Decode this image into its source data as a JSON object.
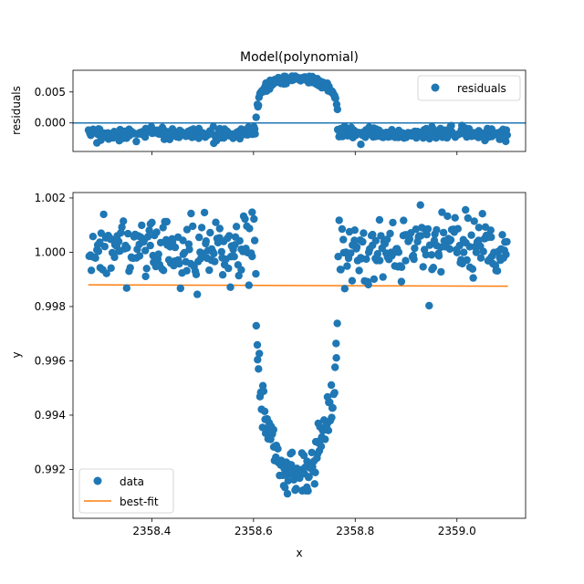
{
  "colors": {
    "data": "#1f77b4",
    "fit": "#ff7f0e",
    "axis": "#000000",
    "zero_line": "#1f77b4"
  },
  "chart_data": [
    {
      "type": "scatter",
      "title": "Model(polynomial)",
      "xlabel": "",
      "ylabel": "residuals",
      "xlim": [
        2358.245,
        2359.135
      ],
      "ylim": [
        -0.0046,
        0.0085
      ],
      "xticks": [
        2358.4,
        2358.6,
        2358.8,
        2359.0
      ],
      "xtick_labels": [
        "",
        "",
        "",
        ""
      ],
      "yticks": [
        -0.0,
        0.005,
        0.0
      ],
      "ytick_labels": [
        "0.000",
        "0.005",
        "0.000"
      ],
      "horizontal_line": 0.0,
      "legend": {
        "placement": "top-right",
        "entries": [
          "residuals"
        ]
      },
      "series": [
        {
          "name": "residuals",
          "segments": [
            {
              "x_start": 2358.275,
              "x_end": 2358.605,
              "count": 170,
              "center": -0.0018,
              "spread": 0.0005,
              "shape": "flat"
            },
            {
              "x_start": 2358.605,
              "x_end": 2358.765,
              "count": 120,
              "center": 0.0,
              "spread": 0.0003,
              "shape": "dome",
              "peak": 0.0072,
              "edge": 0.0022
            },
            {
              "x_start": 2358.765,
              "x_end": 2359.1,
              "count": 170,
              "center": -0.0017,
              "spread": 0.0005,
              "shape": "flat"
            }
          ]
        }
      ]
    },
    {
      "type": "scatter",
      "title": "",
      "xlabel": "x",
      "ylabel": "y",
      "xlim": [
        2358.245,
        2359.135
      ],
      "ylim": [
        0.9902,
        1.0022
      ],
      "xticks": [
        2358.4,
        2358.6,
        2358.8,
        2359.0
      ],
      "xtick_labels": [
        "2358.4",
        "2358.6",
        "2358.8",
        "2359.0"
      ],
      "yticks": [
        0.992,
        0.994,
        0.996,
        0.998,
        1.0,
        1.002
      ],
      "ytick_labels": [
        "0.992",
        "0.994",
        "0.996",
        "0.998",
        "1.000",
        "1.002"
      ],
      "legend": {
        "placement": "bottom-left",
        "entries": [
          "data",
          "best-fit"
        ]
      },
      "series": [
        {
          "name": "data",
          "segments": [
            {
              "x_start": 2358.275,
              "x_end": 2358.605,
              "count": 170,
              "center": 1.0001,
              "spread": 0.0006,
              "shape": "flat"
            },
            {
              "x_start": 2358.605,
              "x_end": 2358.765,
              "count": 120,
              "center": 0.9918,
              "spread": 0.0004,
              "shape": "transit",
              "depth_edge": 0.9985
            },
            {
              "x_start": 2358.765,
              "x_end": 2359.1,
              "count": 170,
              "center": 1.0002,
              "spread": 0.0006,
              "shape": "flat"
            }
          ]
        },
        {
          "name": "best-fit",
          "x": [
            2358.275,
            2359.1
          ],
          "y": [
            0.9988,
            0.99875
          ]
        }
      ]
    }
  ]
}
